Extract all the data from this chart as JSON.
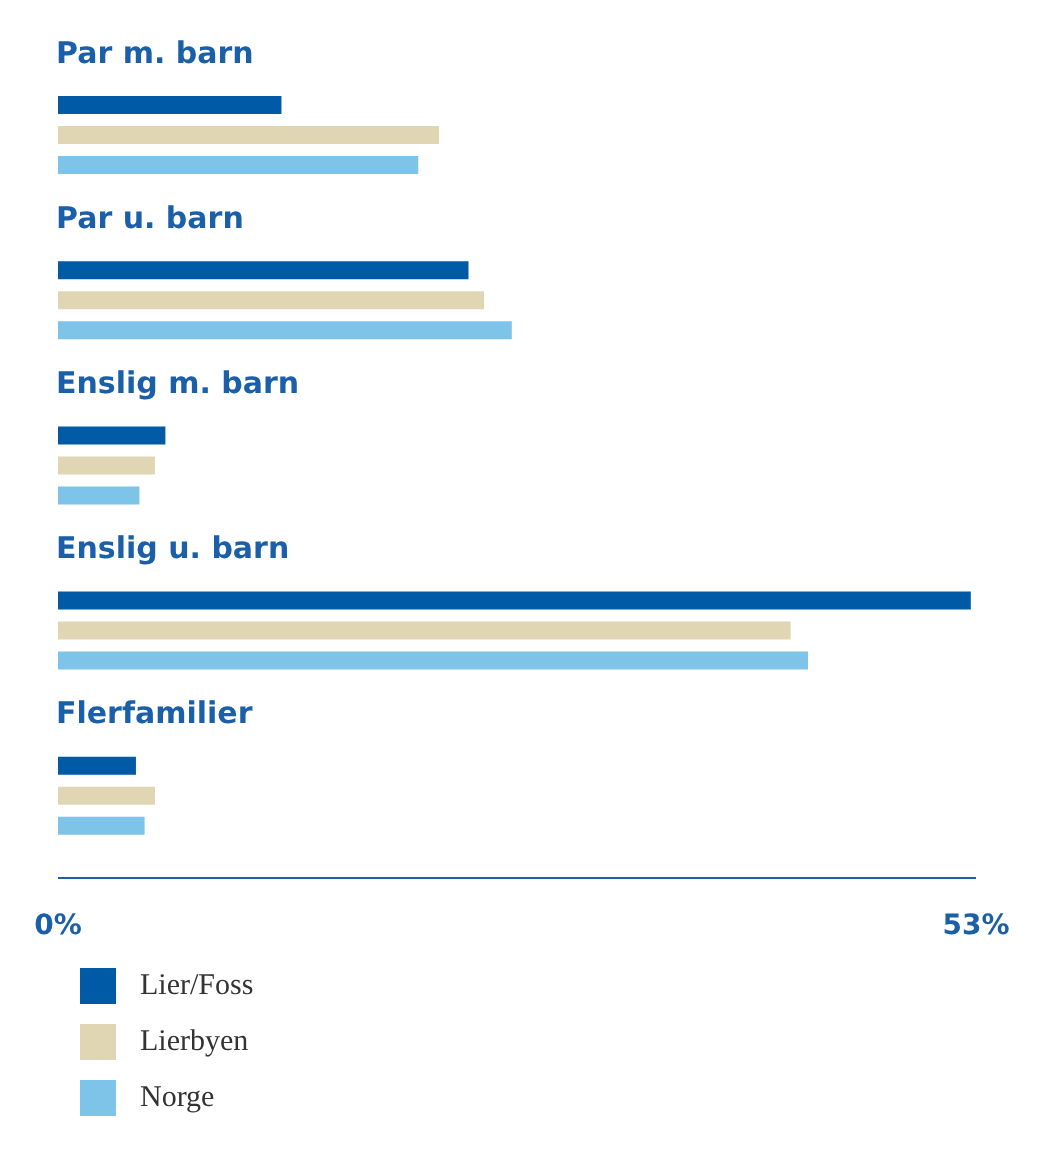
{
  "chart_data": {
    "type": "bar",
    "orientation": "horizontal",
    "categories": [
      "Par m. barn",
      "Par u. barn",
      "Enslig m. barn",
      "Enslig u. barn",
      "Flerfamilier"
    ],
    "series": [
      {
        "name": "Lier/Foss",
        "color": "#005aa5",
        "values": [
          12.9,
          23.7,
          6.2,
          52.7,
          4.5
        ]
      },
      {
        "name": "Lierbyen",
        "color": "#e0d6b4",
        "values": [
          22.0,
          24.6,
          5.6,
          42.3,
          5.6
        ]
      },
      {
        "name": "Norge",
        "color": "#7dc4e8",
        "values": [
          20.8,
          26.2,
          4.7,
          43.3,
          5.0
        ]
      }
    ],
    "xlim": [
      0,
      53
    ],
    "xticks": [
      {
        "value": 0,
        "label": "0%"
      },
      {
        "value": 53,
        "label": "53%"
      }
    ],
    "grid": false,
    "legend": "bottom left"
  }
}
